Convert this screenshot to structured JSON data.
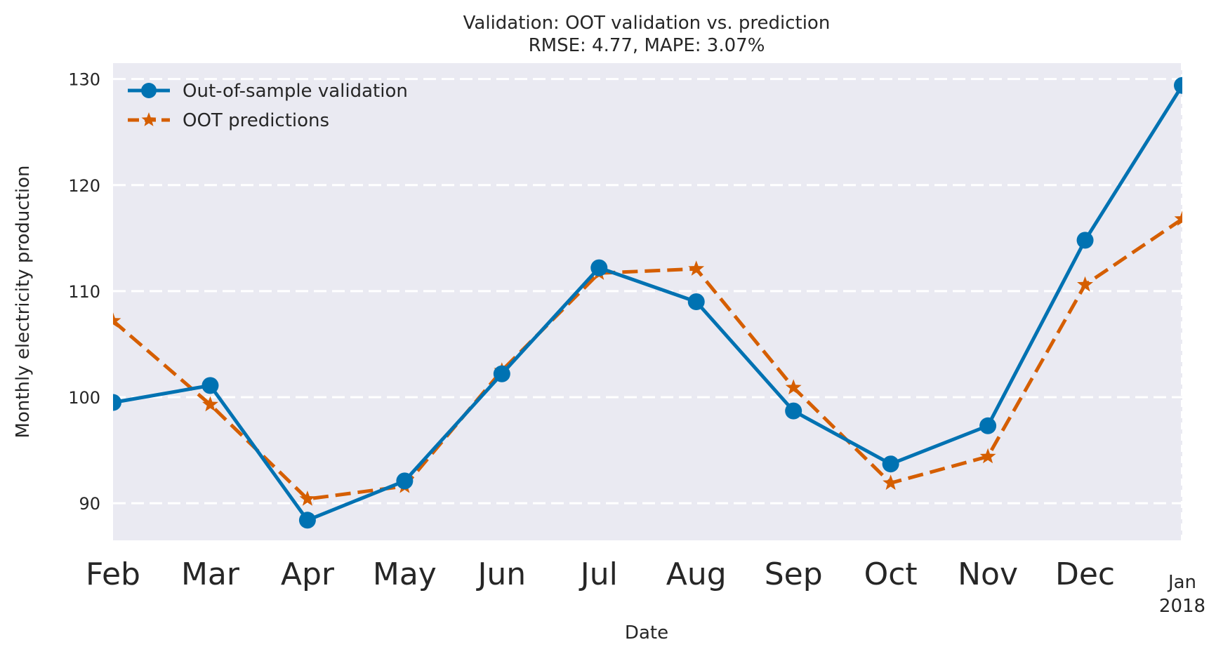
{
  "chart_data": {
    "type": "line",
    "title": "Validation: OOT validation vs. prediction",
    "subtitle": "RMSE: 4.77, MAPE: 3.07%",
    "xlabel": "Date",
    "ylabel": "Monthly electricity production",
    "x": [
      "2017-02",
      "2017-03",
      "2017-04",
      "2017-05",
      "2017-06",
      "2017-07",
      "2017-08",
      "2017-09",
      "2017-10",
      "2017-11",
      "2017-12",
      "2018-01"
    ],
    "x_tick_labels": [
      "Feb",
      "Mar",
      "Apr",
      "May",
      "Jun",
      "Jul",
      "Aug",
      "Sep",
      "Oct",
      "Nov",
      "Dec"
    ],
    "x_tick_last": {
      "month": "Jan",
      "year": "2018"
    },
    "ylim": [
      86.5,
      131.5
    ],
    "yticks": [
      90,
      100,
      110,
      120,
      130
    ],
    "grid": "horizontal dashed",
    "legend_position": "top-left",
    "series": [
      {
        "name": "Out-of-sample validation",
        "color": "#0072B2",
        "style": "solid",
        "marker": "circle",
        "values": [
          99.5,
          101.1,
          88.4,
          92.1,
          102.2,
          112.2,
          109.0,
          98.7,
          93.7,
          97.3,
          114.8,
          129.4
        ]
      },
      {
        "name": "OOT predictions",
        "color": "#D55E00",
        "style": "dashed",
        "marker": "star",
        "values": [
          107.2,
          99.3,
          90.4,
          91.6,
          102.5,
          111.7,
          112.1,
          100.9,
          91.9,
          94.4,
          110.6,
          116.8
        ]
      }
    ],
    "colors": {
      "plot_background": "#EAEAF2",
      "grid": "#ffffff"
    }
  }
}
